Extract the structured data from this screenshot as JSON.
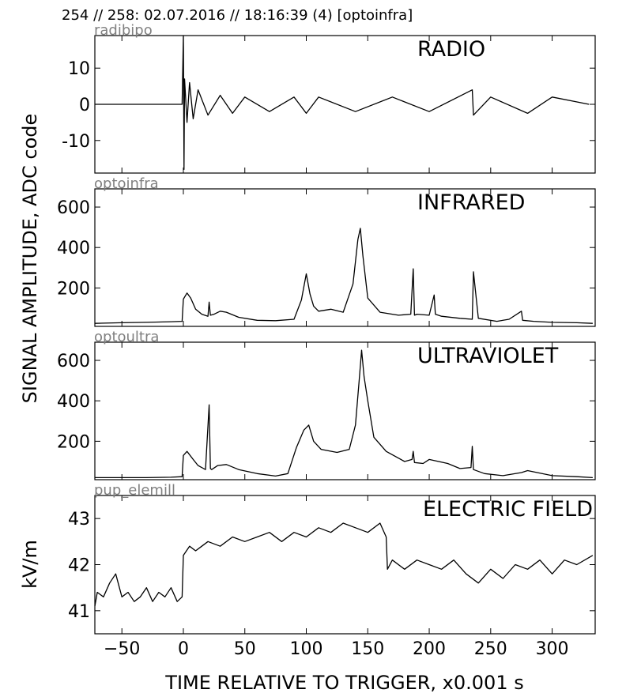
{
  "header": {
    "event_info": "254 // 258:   02.07.2016 // 18:16:39 (4)  [optoinfra]"
  },
  "figure": {
    "shared_ylabel": "SIGNAL AMPLITUDE,  ADC code",
    "xlabel": "TIME RELATIVE TO TRIGGER,   x0.001 s"
  },
  "chart_data": [
    {
      "type": "line",
      "channel": "radibipo",
      "title": "RADIO",
      "ylabel": "SIGNAL AMPLITUDE,  ADC code",
      "xlim": [
        -72,
        335
      ],
      "ylim": [
        -19,
        19
      ],
      "yticks": [
        10,
        0,
        -10
      ],
      "ytick_labels": [
        "10",
        "0",
        "-10"
      ],
      "series": [
        {
          "x": [
            -72,
            -60,
            -50,
            -40,
            -30,
            -20,
            -10,
            -1,
            0,
            0.5,
            1,
            3,
            5,
            8,
            12,
            20,
            30,
            40,
            50,
            70,
            90,
            100,
            110,
            140,
            170,
            200,
            235,
            236,
            250,
            280,
            300,
            330
          ],
          "y": [
            0,
            0,
            0,
            0,
            0,
            0,
            0,
            0,
            19,
            -18,
            7,
            -5,
            6,
            -4,
            4,
            -3,
            2.5,
            -2.5,
            2,
            -2,
            2,
            -2.5,
            2,
            -2,
            2,
            -2,
            4,
            -3,
            2,
            -2.5,
            2,
            0
          ]
        }
      ]
    },
    {
      "type": "line",
      "channel": "optoinfra",
      "title": "INFRARED",
      "xlim": [
        -72,
        335
      ],
      "ylim": [
        10,
        690
      ],
      "yticks": [
        600,
        400,
        200
      ],
      "ytick_labels": [
        "600",
        "400",
        "200"
      ],
      "series": [
        {
          "x": [
            -72,
            -50,
            -30,
            -10,
            -1,
            0,
            3,
            6,
            10,
            15,
            20,
            21,
            22,
            25,
            30,
            35,
            45,
            60,
            75,
            90,
            96,
            100,
            103,
            106,
            110,
            120,
            130,
            138,
            142,
            144,
            146,
            150,
            160,
            175,
            185,
            187,
            188,
            190,
            200,
            204,
            205,
            210,
            225,
            235,
            236,
            240,
            255,
            265,
            275,
            276,
            285,
            300,
            320,
            333
          ],
          "y": [
            25,
            28,
            30,
            33,
            35,
            145,
            175,
            150,
            95,
            70,
            60,
            130,
            65,
            70,
            85,
            80,
            55,
            40,
            38,
            45,
            140,
            270,
            170,
            110,
            85,
            95,
            80,
            220,
            440,
            495,
            360,
            150,
            80,
            65,
            70,
            295,
            65,
            70,
            65,
            165,
            70,
            60,
            50,
            45,
            280,
            50,
            35,
            45,
            85,
            40,
            35,
            30,
            28,
            25
          ]
        }
      ]
    },
    {
      "type": "line",
      "channel": "optoultra",
      "title": "ULTRAVIOLET",
      "xlim": [
        -72,
        335
      ],
      "ylim": [
        10,
        690
      ],
      "yticks": [
        600,
        400,
        200
      ],
      "ytick_labels": [
        "600",
        "400",
        "200"
      ],
      "series": [
        {
          "x": [
            -72,
            -50,
            -30,
            -10,
            -1,
            0,
            3,
            8,
            12,
            18,
            21,
            22,
            23,
            28,
            35,
            45,
            60,
            75,
            85,
            92,
            98,
            102,
            106,
            112,
            125,
            135,
            140,
            143,
            145,
            147,
            150,
            155,
            165,
            180,
            186,
            187,
            188,
            195,
            200,
            215,
            225,
            234,
            235,
            236,
            245,
            260,
            275,
            280,
            300,
            320,
            333
          ],
          "y": [
            20,
            20,
            20,
            22,
            25,
            130,
            150,
            110,
            80,
            60,
            380,
            65,
            60,
            80,
            85,
            60,
            40,
            28,
            40,
            170,
            255,
            280,
            200,
            160,
            145,
            160,
            280,
            500,
            650,
            520,
            400,
            220,
            150,
            100,
            110,
            150,
            95,
            90,
            110,
            90,
            65,
            70,
            175,
            60,
            40,
            30,
            45,
            55,
            30,
            25,
            20
          ]
        }
      ]
    },
    {
      "type": "line",
      "channel": "pup_elemill",
      "title": "ELECTRIC FIELD",
      "ylabel": "kV/m",
      "xlim": [
        -72,
        335
      ],
      "ylim": [
        40.5,
        43.5
      ],
      "yticks": [
        43,
        42,
        41
      ],
      "ytick_labels": [
        "43",
        "42",
        "41"
      ],
      "xticks": [
        -50,
        0,
        50,
        100,
        150,
        200,
        250,
        300
      ],
      "xtick_labels": [
        "−50",
        "0",
        "50",
        "100",
        "150",
        "200",
        "250",
        "300"
      ],
      "series": [
        {
          "x": [
            -72,
            -70,
            -65,
            -60,
            -55,
            -50,
            -45,
            -40,
            -35,
            -30,
            -25,
            -20,
            -15,
            -10,
            -5,
            -1,
            0,
            5,
            10,
            20,
            30,
            40,
            50,
            60,
            70,
            80,
            90,
            100,
            110,
            120,
            130,
            140,
            150,
            160,
            165,
            166,
            170,
            180,
            190,
            200,
            210,
            220,
            230,
            240,
            250,
            260,
            270,
            280,
            290,
            300,
            310,
            320,
            333
          ],
          "y": [
            41.1,
            41.4,
            41.3,
            41.6,
            41.8,
            41.3,
            41.4,
            41.2,
            41.3,
            41.5,
            41.2,
            41.4,
            41.3,
            41.5,
            41.2,
            41.3,
            42.2,
            42.4,
            42.3,
            42.5,
            42.4,
            42.6,
            42.5,
            42.6,
            42.7,
            42.5,
            42.7,
            42.6,
            42.8,
            42.7,
            42.9,
            42.8,
            42.7,
            42.9,
            42.6,
            41.9,
            42.1,
            41.9,
            42.1,
            42.0,
            41.9,
            42.1,
            41.8,
            41.6,
            41.9,
            41.7,
            42.0,
            41.9,
            42.1,
            41.8,
            42.1,
            42.0,
            42.2
          ]
        }
      ]
    }
  ]
}
